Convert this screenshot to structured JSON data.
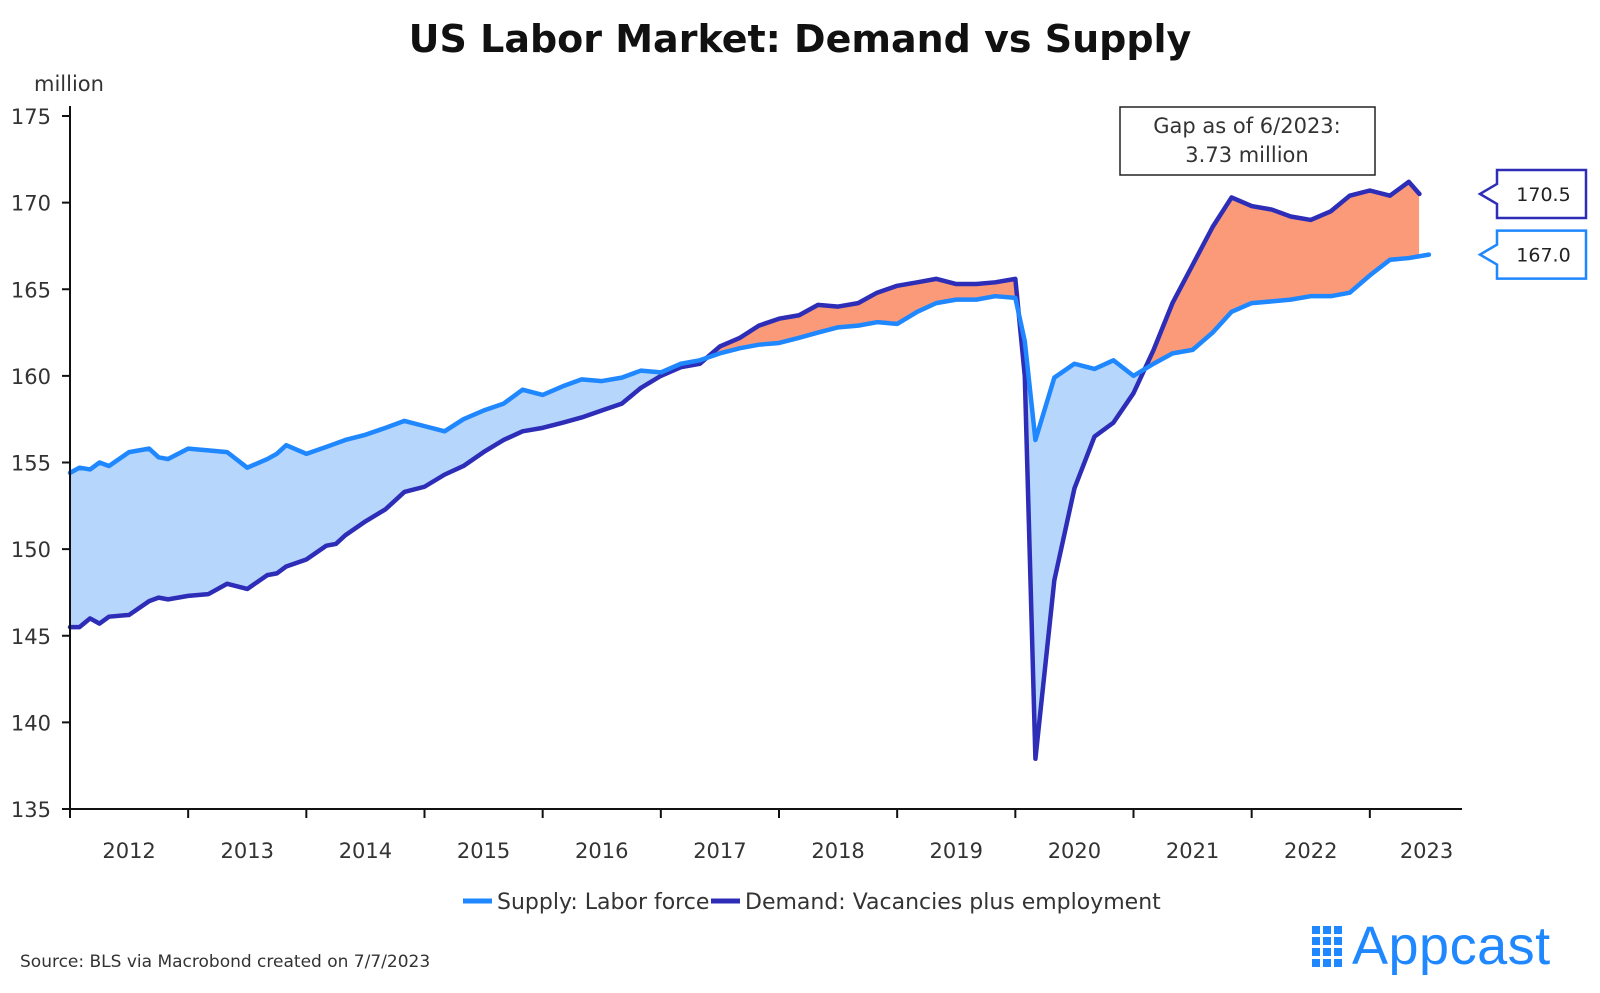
{
  "source": "Source: BLS via Macrobond created on 7/7/2023",
  "brand": "Appcast",
  "colors": {
    "supply": "#1f87ff",
    "demand": "#2d2db8",
    "gap_supply": "#b6d6fb",
    "gap_demand": "#fb9a78"
  },
  "chart_data": {
    "type": "line",
    "title": "US Labor Market: Demand vs Supply",
    "ylabel": "million",
    "ylim": [
      135,
      175
    ],
    "yticks": [
      135,
      140,
      145,
      150,
      155,
      160,
      165,
      170,
      175
    ],
    "xlim": [
      2012,
      2023.78
    ],
    "xtick_labels": [
      "2012",
      "2013",
      "2014",
      "2015",
      "2016",
      "2017",
      "2018",
      "2019",
      "2020",
      "2021",
      "2022",
      "2023"
    ],
    "legend_position": "bottom",
    "grid": false,
    "series": [
      {
        "name": "Supply: Labor force",
        "x": [
          2012.0,
          2012.08,
          2012.17,
          2012.25,
          2012.33,
          2012.5,
          2012.67,
          2012.75,
          2012.83,
          2013.0,
          2013.17,
          2013.33,
          2013.5,
          2013.67,
          2013.75,
          2013.83,
          2014.0,
          2014.17,
          2014.25,
          2014.33,
          2014.5,
          2014.67,
          2014.83,
          2015.0,
          2015.17,
          2015.33,
          2015.5,
          2015.67,
          2015.83,
          2016.0,
          2016.17,
          2016.33,
          2016.5,
          2016.67,
          2016.83,
          2017.0,
          2017.17,
          2017.33,
          2017.5,
          2017.67,
          2017.83,
          2018.0,
          2018.17,
          2018.33,
          2018.5,
          2018.67,
          2018.83,
          2019.0,
          2019.17,
          2019.33,
          2019.5,
          2019.67,
          2019.83,
          2020.0,
          2020.08,
          2020.17,
          2020.33,
          2020.5,
          2020.67,
          2020.83,
          2021.0,
          2021.17,
          2021.33,
          2021.5,
          2021.67,
          2021.83,
          2022.0,
          2022.17,
          2022.33,
          2022.5,
          2022.67,
          2022.83,
          2023.0,
          2023.17,
          2023.33,
          2023.5
        ],
        "values": [
          154.4,
          154.7,
          154.6,
          155.0,
          154.8,
          155.6,
          155.8,
          155.3,
          155.2,
          155.8,
          155.7,
          155.6,
          154.7,
          155.2,
          155.5,
          156.0,
          155.5,
          155.9,
          156.1,
          156.3,
          156.6,
          157.0,
          157.4,
          157.1,
          156.8,
          157.5,
          158.0,
          158.4,
          159.2,
          158.9,
          159.4,
          159.8,
          159.7,
          159.9,
          160.3,
          160.2,
          160.7,
          160.9,
          161.3,
          161.6,
          161.8,
          161.9,
          162.2,
          162.5,
          162.8,
          162.9,
          163.1,
          163.0,
          163.7,
          164.2,
          164.4,
          164.4,
          164.6,
          164.5,
          162.0,
          156.3,
          159.9,
          160.7,
          160.4,
          160.9,
          160.0,
          160.7,
          161.3,
          161.5,
          162.5,
          163.7,
          164.2,
          164.3,
          164.4,
          164.6,
          164.6,
          164.8,
          165.8,
          166.7,
          166.8,
          167.0
        ]
      },
      {
        "name": "Demand: Vacancies plus employment",
        "x": [
          2012.0,
          2012.08,
          2012.17,
          2012.25,
          2012.33,
          2012.5,
          2012.67,
          2012.75,
          2012.83,
          2013.0,
          2013.17,
          2013.33,
          2013.5,
          2013.67,
          2013.75,
          2013.83,
          2014.0,
          2014.17,
          2014.25,
          2014.33,
          2014.5,
          2014.67,
          2014.83,
          2015.0,
          2015.17,
          2015.33,
          2015.5,
          2015.67,
          2015.83,
          2016.0,
          2016.17,
          2016.33,
          2016.5,
          2016.67,
          2016.83,
          2017.0,
          2017.17,
          2017.33,
          2017.5,
          2017.67,
          2017.83,
          2018.0,
          2018.17,
          2018.33,
          2018.5,
          2018.67,
          2018.83,
          2019.0,
          2019.17,
          2019.33,
          2019.5,
          2019.67,
          2019.83,
          2020.0,
          2020.08,
          2020.17,
          2020.33,
          2020.5,
          2020.67,
          2020.83,
          2021.0,
          2021.17,
          2021.33,
          2021.5,
          2021.67,
          2021.83,
          2022.0,
          2022.17,
          2022.33,
          2022.5,
          2022.67,
          2022.83,
          2023.0,
          2023.17,
          2023.33,
          2023.42
        ],
        "values": [
          145.5,
          145.5,
          146.0,
          145.7,
          146.1,
          146.2,
          147.0,
          147.2,
          147.1,
          147.3,
          147.4,
          148.0,
          147.7,
          148.5,
          148.6,
          149.0,
          149.4,
          150.2,
          150.3,
          150.8,
          151.6,
          152.3,
          153.3,
          153.6,
          154.3,
          154.8,
          155.6,
          156.3,
          156.8,
          157.0,
          157.3,
          157.6,
          158.0,
          158.4,
          159.3,
          160.0,
          160.5,
          160.7,
          161.7,
          162.2,
          162.9,
          163.3,
          163.5,
          164.1,
          164.0,
          164.2,
          164.8,
          165.2,
          165.4,
          165.6,
          165.3,
          165.3,
          165.4,
          165.6,
          160.0,
          137.9,
          148.2,
          153.5,
          156.5,
          157.3,
          159.0,
          161.5,
          164.2,
          166.4,
          168.6,
          170.3,
          169.8,
          169.6,
          169.2,
          169.0,
          169.5,
          170.4,
          170.7,
          170.4,
          171.2,
          170.5
        ]
      }
    ],
    "annotations": [
      {
        "text_line1": "Gap as of 6/2023:",
        "text_line2": "3.73 million"
      },
      {
        "label": "170.5",
        "series": "demand"
      },
      {
        "label": "167.0",
        "series": "supply"
      }
    ],
    "legend": [
      {
        "label": "Supply: Labor force",
        "series": "supply"
      },
      {
        "label": "Demand: Vacancies plus employment",
        "series": "demand"
      }
    ]
  }
}
